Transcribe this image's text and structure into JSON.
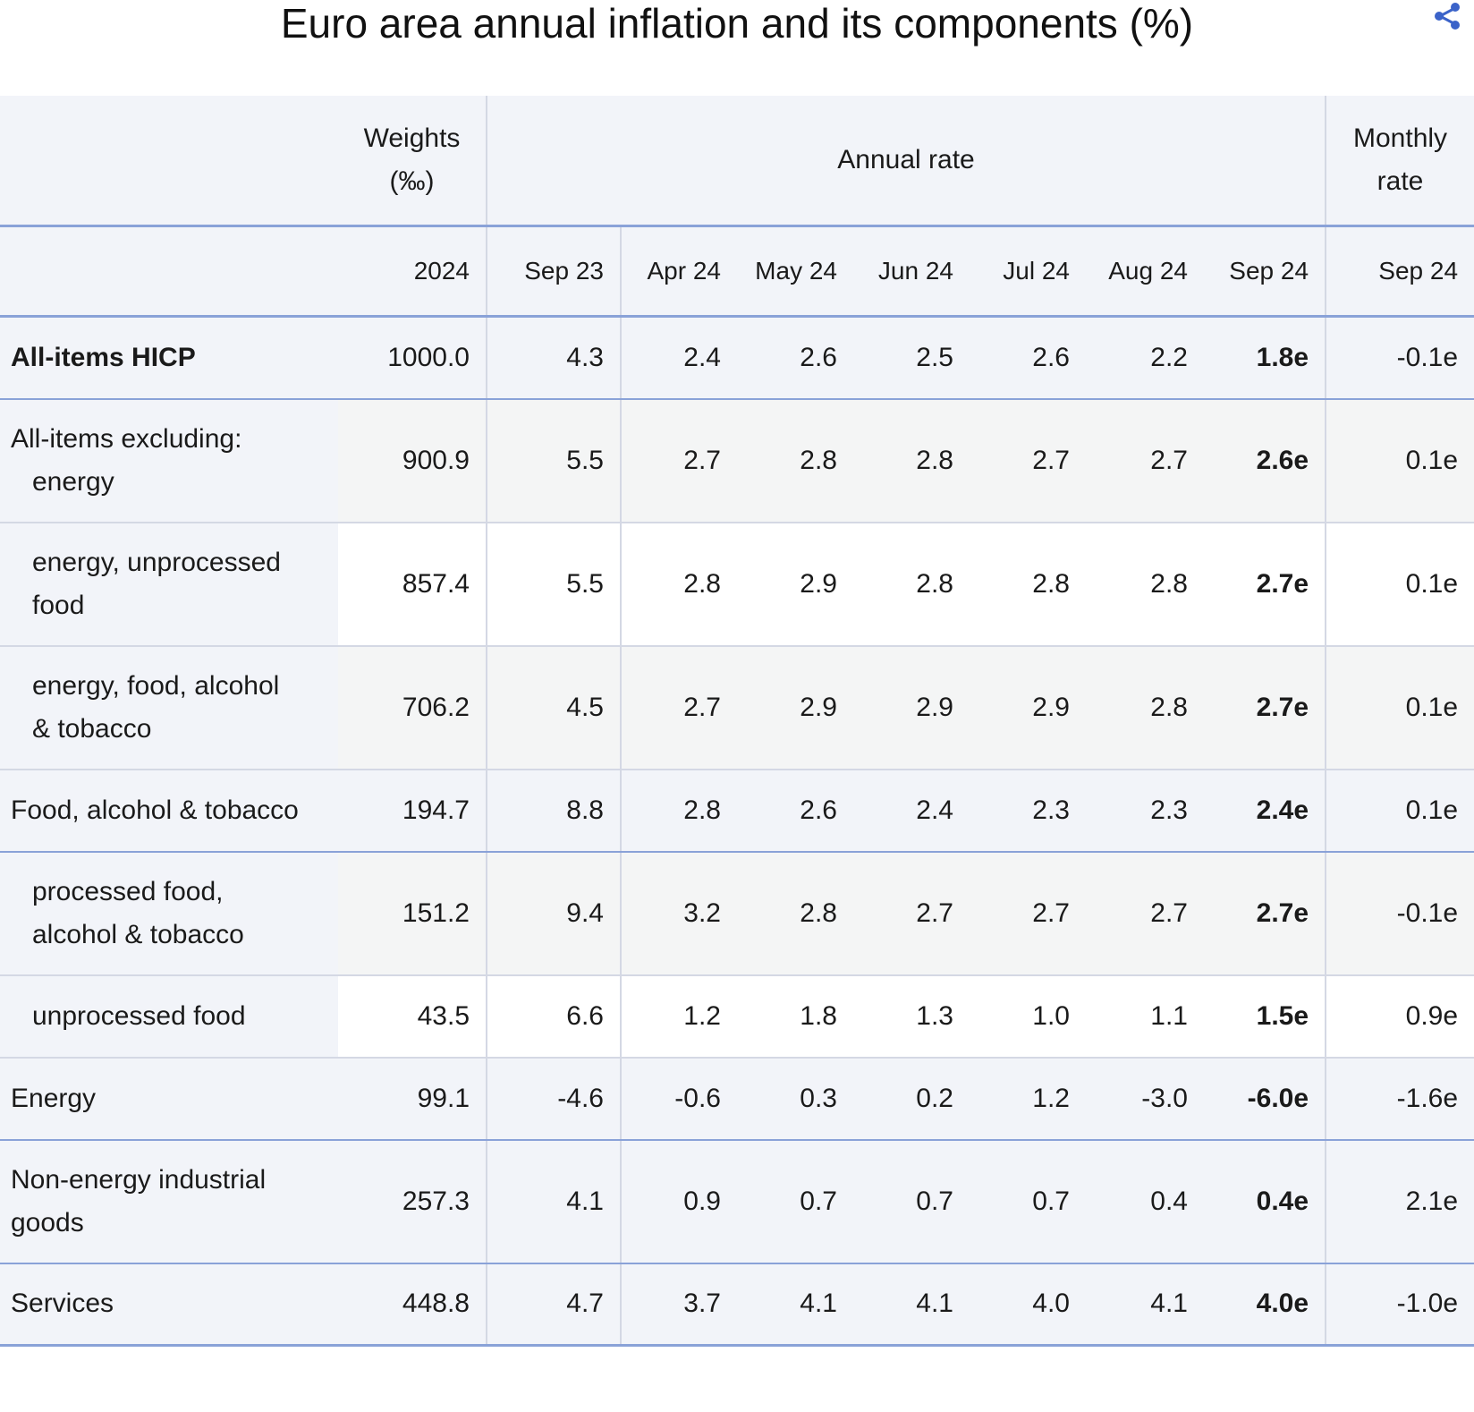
{
  "title": "Euro area annual inflation and its components (%)",
  "icons": {
    "share": "share-icon"
  },
  "header": {
    "weights": [
      "Weights",
      "(‰)"
    ],
    "annual_rate": "Annual rate",
    "monthly_rate": [
      "Monthly",
      "rate"
    ],
    "columns": [
      "2024",
      "Sep 23",
      "Apr 24",
      "May 24",
      "Jun 24",
      "Jul 24",
      "Aug 24",
      "Sep 24",
      "Sep 24"
    ]
  },
  "colors": {
    "header_bg": "#f2f4f9",
    "accent_rule": "#8aa2d8",
    "share_icon": "#3b63c9"
  },
  "chart_data": {
    "type": "table",
    "title": "Euro area annual inflation and its components (%)",
    "columns": [
      "Weights (‰) 2024",
      "Sep 23",
      "Apr 24",
      "May 24",
      "Jun 24",
      "Jul 24",
      "Aug 24",
      "Sep 24",
      "Monthly rate Sep 24"
    ],
    "rows": [
      {
        "label": [
          "All-items HICP"
        ],
        "values": [
          "1000.0",
          "4.3",
          "2.4",
          "2.6",
          "2.5",
          "2.6",
          "2.2",
          "1.8e",
          "-0.1e"
        ]
      },
      {
        "label": [
          "All-items excluding:",
          "energy"
        ],
        "values": [
          "900.9",
          "5.5",
          "2.7",
          "2.8",
          "2.8",
          "2.7",
          "2.7",
          "2.6e",
          "0.1e"
        ]
      },
      {
        "label": [
          "energy, unprocessed",
          "food"
        ],
        "values": [
          "857.4",
          "5.5",
          "2.8",
          "2.9",
          "2.8",
          "2.8",
          "2.8",
          "2.7e",
          "0.1e"
        ]
      },
      {
        "label": [
          "energy, food, alcohol",
          "& tobacco"
        ],
        "values": [
          "706.2",
          "4.5",
          "2.7",
          "2.9",
          "2.9",
          "2.9",
          "2.8",
          "2.7e",
          "0.1e"
        ]
      },
      {
        "label": [
          "Food, alcohol & tobacco"
        ],
        "values": [
          "194.7",
          "8.8",
          "2.8",
          "2.6",
          "2.4",
          "2.3",
          "2.3",
          "2.4e",
          "0.1e"
        ]
      },
      {
        "label": [
          "processed food,",
          "alcohol & tobacco"
        ],
        "values": [
          "151.2",
          "9.4",
          "3.2",
          "2.8",
          "2.7",
          "2.7",
          "2.7",
          "2.7e",
          "-0.1e"
        ]
      },
      {
        "label": [
          "unprocessed food"
        ],
        "values": [
          "43.5",
          "6.6",
          "1.2",
          "1.8",
          "1.3",
          "1.0",
          "1.1",
          "1.5e",
          "0.9e"
        ]
      },
      {
        "label": [
          "Energy"
        ],
        "values": [
          "99.1",
          "-4.6",
          "-0.6",
          "0.3",
          "0.2",
          "1.2",
          "-3.0",
          "-6.0e",
          "-1.6e"
        ]
      },
      {
        "label": [
          "Non-energy industrial",
          "goods"
        ],
        "values": [
          "257.3",
          "4.1",
          "0.9",
          "0.7",
          "0.7",
          "0.7",
          "0.4",
          "0.4e",
          "2.1e"
        ]
      },
      {
        "label": [
          "Services"
        ],
        "values": [
          "448.8",
          "4.7",
          "3.7",
          "4.1",
          "4.1",
          "4.0",
          "4.1",
          "4.0e",
          "-1.0e"
        ]
      }
    ]
  }
}
